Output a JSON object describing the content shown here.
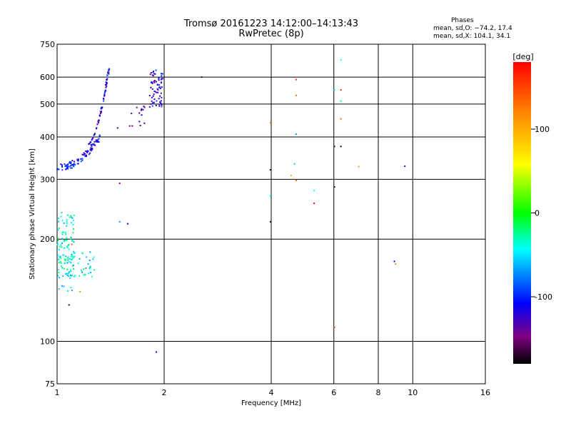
{
  "chart_data": {
    "type": "scatter",
    "title": "Tromsø 20161223 14:12:00–14:13:43",
    "subtitle": "RwPretec (8p)",
    "xlabel": "Frequency [MHz]",
    "ylabel": "Stationary phase Virtual Height [km]",
    "x_scale": "log",
    "y_scale": "log",
    "xlim": [
      1,
      16
    ],
    "ylim": [
      75,
      750
    ],
    "x_ticks": [
      1,
      2,
      4,
      6,
      8,
      10,
      16
    ],
    "x_tick_labels": [
      "1",
      "2",
      "4",
      "6",
      "8",
      "10",
      "16"
    ],
    "y_ticks": [
      75,
      100,
      200,
      300,
      400,
      500,
      600,
      750
    ],
    "y_tick_labels": [
      "75",
      "100",
      "200",
      "300",
      "400",
      "500",
      "600",
      "750"
    ],
    "grid": true,
    "phase_stats": {
      "title": "Phases",
      "o_line": "mean, sd,O: −74.2, 17.4",
      "x_line": "mean, sd,X: 104.1, 34.1"
    },
    "colorbar": {
      "label": "[deg]",
      "range": [
        -180,
        180
      ],
      "ticks": [
        100,
        0,
        -100
      ],
      "tick_labels": [
        "100",
        "0",
        "-100"
      ]
    },
    "clusters": [
      {
        "f_range": [
          1.0,
          1.32
        ],
        "h_range": [
          325,
          400
        ],
        "count": 100,
        "phase": -110,
        "shape": "curve-low"
      },
      {
        "f_range": [
          1.22,
          1.4
        ],
        "h_range": [
          380,
          640
        ],
        "count": 80,
        "phase": -115,
        "shape": "curve-high"
      },
      {
        "f_range": [
          1.82,
          1.98
        ],
        "h_range": [
          490,
          630
        ],
        "count": 70,
        "phase": -120,
        "shape": "band"
      },
      {
        "f_range": [
          1.6,
          1.82
        ],
        "h_range": [
          430,
          500
        ],
        "count": 14,
        "phase": -130,
        "shape": "band"
      },
      {
        "f_range": [
          1.0,
          1.12
        ],
        "h_range": [
          140,
          240
        ],
        "count": 110,
        "phase": -40,
        "shape": "band"
      },
      {
        "f_range": [
          1.05,
          1.28
        ],
        "h_range": [
          155,
          185
        ],
        "count": 40,
        "phase": -45,
        "shape": "band"
      }
    ],
    "points": [
      {
        "x": 2.55,
        "y": 600,
        "phase": -160
      },
      {
        "x": 1.48,
        "y": 425,
        "phase": -130
      },
      {
        "x": 1.5,
        "y": 292,
        "phase": -150
      },
      {
        "x": 1.5,
        "y": 225,
        "phase": -70
      },
      {
        "x": 1.58,
        "y": 222,
        "phase": -120
      },
      {
        "x": 1.9,
        "y": 93,
        "phase": -110
      },
      {
        "x": 1.16,
        "y": 140,
        "phase": 110
      },
      {
        "x": 1.08,
        "y": 128,
        "phase": -170
      },
      {
        "x": 1.1,
        "y": 193,
        "phase": 140
      },
      {
        "x": 3.98,
        "y": 440,
        "phase": 120
      },
      {
        "x": 3.98,
        "y": 320,
        "phase": -175
      },
      {
        "x": 3.98,
        "y": 268,
        "phase": -45
      },
      {
        "x": 3.98,
        "y": 225,
        "phase": -170
      },
      {
        "x": 4.55,
        "y": 308,
        "phase": 100
      },
      {
        "x": 4.7,
        "y": 590,
        "phase": 155
      },
      {
        "x": 4.7,
        "y": 530,
        "phase": 130
      },
      {
        "x": 4.7,
        "y": 408,
        "phase": -70
      },
      {
        "x": 4.65,
        "y": 333,
        "phase": -60
      },
      {
        "x": 4.7,
        "y": 298,
        "phase": 140
      },
      {
        "x": 5.28,
        "y": 278,
        "phase": -45
      },
      {
        "x": 5.28,
        "y": 255,
        "phase": 170
      },
      {
        "x": 6.02,
        "y": 550,
        "phase": -55
      },
      {
        "x": 6.02,
        "y": 375,
        "phase": -170
      },
      {
        "x": 6.02,
        "y": 285,
        "phase": -170
      },
      {
        "x": 6.02,
        "y": 110,
        "phase": 150
      },
      {
        "x": 6.28,
        "y": 675,
        "phase": -45
      },
      {
        "x": 6.28,
        "y": 550,
        "phase": 160
      },
      {
        "x": 6.28,
        "y": 510,
        "phase": -50
      },
      {
        "x": 6.28,
        "y": 452,
        "phase": 130
      },
      {
        "x": 6.28,
        "y": 375,
        "phase": -175
      },
      {
        "x": 7.05,
        "y": 327,
        "phase": 110
      },
      {
        "x": 8.88,
        "y": 172,
        "phase": -110
      },
      {
        "x": 8.95,
        "y": 169,
        "phase": 120
      },
      {
        "x": 9.5,
        "y": 328,
        "phase": -115
      }
    ]
  }
}
